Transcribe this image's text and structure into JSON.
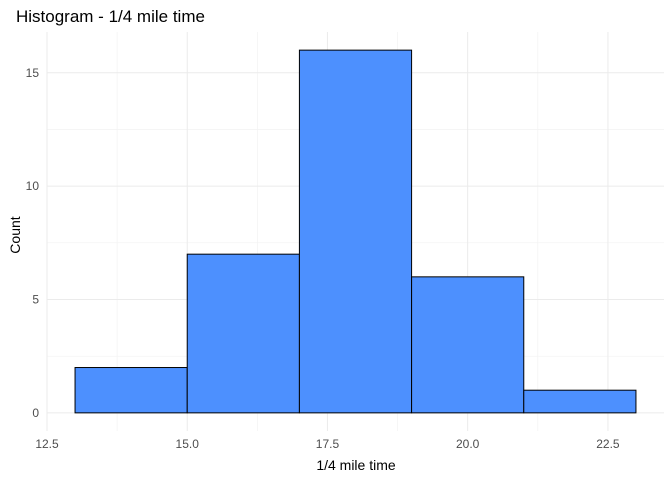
{
  "colors": {
    "bar_fill": "#4d90fe",
    "bar_stroke": "#000000",
    "grid_major": "#ebebeb",
    "grid_minor": "#f2f2f2",
    "tick_text": "#4d4d4d"
  },
  "chart_data": {
    "type": "bar",
    "title": "Histogram - 1/4 mile time",
    "xlabel": "1/4 mile time",
    "ylabel": "Count",
    "bins": [
      {
        "start": 13,
        "end": 15,
        "count": 2
      },
      {
        "start": 15,
        "end": 17,
        "count": 7
      },
      {
        "start": 17,
        "end": 19,
        "count": 16
      },
      {
        "start": 19,
        "end": 21,
        "count": 6
      },
      {
        "start": 21,
        "end": 23,
        "count": 1
      }
    ],
    "xlim": [
      12.5,
      23.5
    ],
    "ylim": [
      -0.8,
      16.8
    ],
    "x_ticks": [
      {
        "value": 12.5,
        "label": "12.5"
      },
      {
        "value": 15.0,
        "label": "15.0"
      },
      {
        "value": 17.5,
        "label": "17.5"
      },
      {
        "value": 20.0,
        "label": "20.0"
      },
      {
        "value": 22.5,
        "label": "22.5"
      }
    ],
    "y_ticks": [
      {
        "value": 0,
        "label": "0"
      },
      {
        "value": 5,
        "label": "5"
      },
      {
        "value": 10,
        "label": "10"
      },
      {
        "value": 15,
        "label": "15"
      }
    ],
    "x_minor_ticks": [
      13.75,
      16.25,
      18.75,
      21.25
    ],
    "y_minor_ticks": [
      2.5,
      7.5,
      12.5
    ],
    "grid": true,
    "legend": "none"
  }
}
